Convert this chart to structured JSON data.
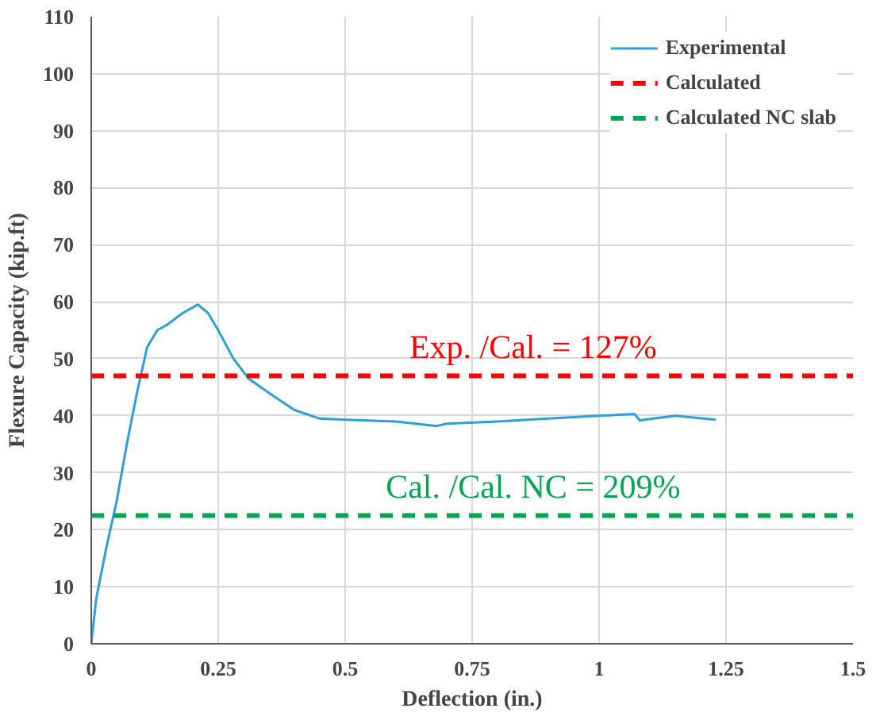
{
  "chart_data": {
    "type": "line",
    "xlabel": "Deflection (in.)",
    "ylabel": "Flexure Capacity (kip.ft)",
    "xlim": [
      0,
      1.5
    ],
    "xticks": [
      0,
      0.25,
      0.5,
      0.75,
      1,
      1.25,
      1.5
    ],
    "ylim": [
      0,
      110
    ],
    "yticks": [
      0,
      10,
      20,
      30,
      40,
      50,
      60,
      70,
      80,
      90,
      100,
      110
    ],
    "grid": true,
    "legend": "top right",
    "line_style": "solid",
    "series": [
      {
        "name": "Experimental",
        "color": "#2e9fd8",
        "x": [
          0,
          0.01,
          0.03,
          0.05,
          0.07,
          0.09,
          0.11,
          0.13,
          0.15,
          0.18,
          0.21,
          0.23,
          0.25,
          0.28,
          0.31,
          0.35,
          0.4,
          0.45,
          0.5,
          0.6,
          0.68,
          0.7,
          0.8,
          0.9,
          1.0,
          1.07,
          1.08,
          1.15,
          1.23
        ],
        "values": [
          0,
          8,
          17,
          25,
          35,
          44,
          52,
          55,
          56,
          58,
          59.5,
          58,
          55,
          50,
          46.5,
          44,
          41,
          39.5,
          39.3,
          39,
          38.2,
          38.6,
          39,
          39.5,
          40,
          40.3,
          39.2,
          40,
          39.3
        ]
      },
      {
        "name": "Calculated",
        "color": "#ff0000",
        "type": "line",
        "line_style": "dashed",
        "x": [
          0,
          1.5
        ],
        "values": [
          47,
          47
        ]
      },
      {
        "name": "Calculated NC slab",
        "color": "#00a650",
        "type": "line",
        "line_style": "dashed",
        "x": [
          0,
          1.5
        ],
        "values": [
          22.5,
          22.5
        ]
      }
    ],
    "annotations": [
      {
        "text": "Exp. /Cal. = 127%",
        "x": 0.87,
        "y": 47
      },
      {
        "text": "Cal. /Cal. NC = 209%",
        "x": 0.87,
        "y": 22.5
      }
    ]
  }
}
